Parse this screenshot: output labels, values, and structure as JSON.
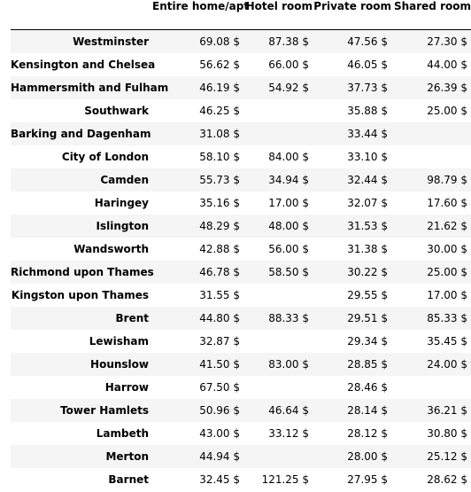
{
  "columns": [
    "",
    "Entire home/apt",
    "Hotel room",
    "Private room",
    "Shared room"
  ],
  "rows": [
    {
      "label": "Westminster",
      "values": [
        "69.08 $",
        "87.38 $",
        "47.56 $",
        "27.30 $"
      ]
    },
    {
      "label": "Kensington and Chelsea",
      "values": [
        "56.62 $",
        "66.00 $",
        "46.05 $",
        "44.00 $"
      ]
    },
    {
      "label": "Hammersmith and Fulham",
      "values": [
        "46.19 $",
        "54.92 $",
        "37.73 $",
        "26.39 $"
      ]
    },
    {
      "label": "Southwark",
      "values": [
        "46.25 $",
        "",
        "35.88 $",
        "25.00 $"
      ]
    },
    {
      "label": "Barking and Dagenham",
      "values": [
        "31.08 $",
        "",
        "33.44 $",
        ""
      ]
    },
    {
      "label": "City of London",
      "values": [
        "58.10 $",
        "84.00 $",
        "33.10 $",
        ""
      ]
    },
    {
      "label": "Camden",
      "values": [
        "55.73 $",
        "34.94 $",
        "32.44 $",
        "98.79 $"
      ]
    },
    {
      "label": "Haringey",
      "values": [
        "35.16 $",
        "17.00 $",
        "32.07 $",
        "17.60 $"
      ]
    },
    {
      "label": "Islington",
      "values": [
        "48.29 $",
        "48.00 $",
        "31.53 $",
        "21.62 $"
      ]
    },
    {
      "label": "Wandsworth",
      "values": [
        "42.88 $",
        "56.00 $",
        "31.38 $",
        "30.00 $"
      ]
    },
    {
      "label": "Richmond upon Thames",
      "values": [
        "46.78 $",
        "58.50 $",
        "30.22 $",
        "25.00 $"
      ]
    },
    {
      "label": "Kingston upon Thames",
      "values": [
        "31.55 $",
        "",
        "29.55 $",
        "17.00 $"
      ]
    },
    {
      "label": "Brent",
      "values": [
        "44.80 $",
        "88.33 $",
        "29.51 $",
        "85.33 $"
      ]
    },
    {
      "label": "Lewisham",
      "values": [
        "32.87 $",
        "",
        "29.34 $",
        "35.45 $"
      ]
    },
    {
      "label": "Hounslow",
      "values": [
        "41.50 $",
        "83.00 $",
        "28.85 $",
        "24.00 $"
      ]
    },
    {
      "label": "Harrow",
      "values": [
        "67.50 $",
        "",
        "28.46 $",
        ""
      ]
    },
    {
      "label": "Tower Hamlets",
      "values": [
        "50.96 $",
        "46.64 $",
        "28.14 $",
        "36.21 $"
      ]
    },
    {
      "label": "Lambeth",
      "values": [
        "43.00 $",
        "33.12 $",
        "28.12 $",
        "30.80 $"
      ]
    },
    {
      "label": "Merton",
      "values": [
        "44.94 $",
        "",
        "28.00 $",
        "25.12 $"
      ]
    },
    {
      "label": "Barnet",
      "values": [
        "32.45 $",
        "121.25 $",
        "27.95 $",
        "28.62 $"
      ]
    }
  ]
}
